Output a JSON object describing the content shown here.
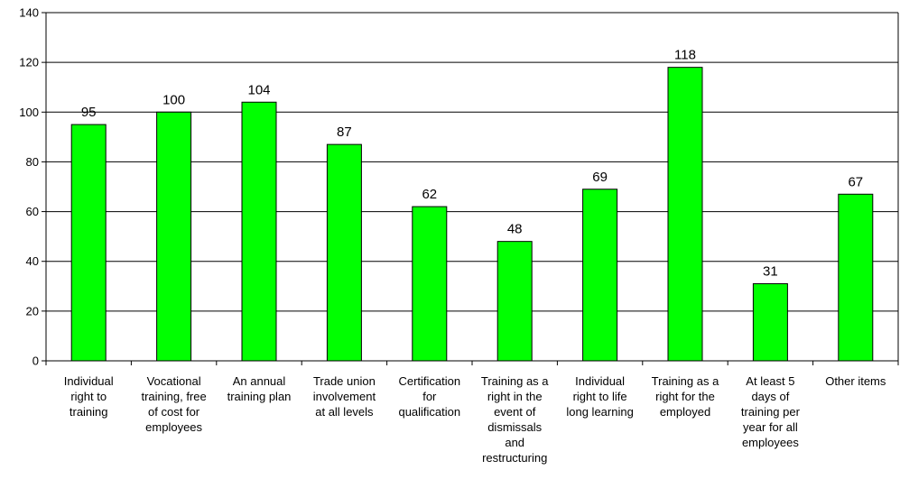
{
  "chart_data": {
    "type": "bar",
    "categories": [
      [
        "Individual",
        "right to",
        "training"
      ],
      [
        "Vocational",
        "training, free",
        "of cost for",
        "employees"
      ],
      [
        "An annual",
        "training plan"
      ],
      [
        "Trade union",
        "involvement",
        "at all levels"
      ],
      [
        "Certification",
        "for",
        "qualification"
      ],
      [
        "Training as a",
        "right in the",
        "event of",
        "dismissals",
        "and",
        "restructuring"
      ],
      [
        "Individual",
        "right to life",
        "long learning"
      ],
      [
        "Training as a",
        "right for the",
        "employed"
      ],
      [
        "At least 5",
        "days of",
        "training per",
        "year for all",
        "employees"
      ],
      [
        "Other items"
      ]
    ],
    "values": [
      95,
      100,
      104,
      87,
      62,
      48,
      69,
      118,
      31,
      67
    ],
    "data_labels": [
      "95",
      "100",
      "104",
      "87",
      "62",
      "48",
      "69",
      "118",
      "31",
      "67"
    ],
    "title": "",
    "xlabel": "",
    "ylabel": "",
    "ylim": [
      0,
      140
    ],
    "yticks": [
      "0",
      "20",
      "40",
      "60",
      "80",
      "100",
      "120",
      "140"
    ],
    "grid": true,
    "legend": "none",
    "bar_color": "#00ff00",
    "bar_outline": "#000000"
  }
}
